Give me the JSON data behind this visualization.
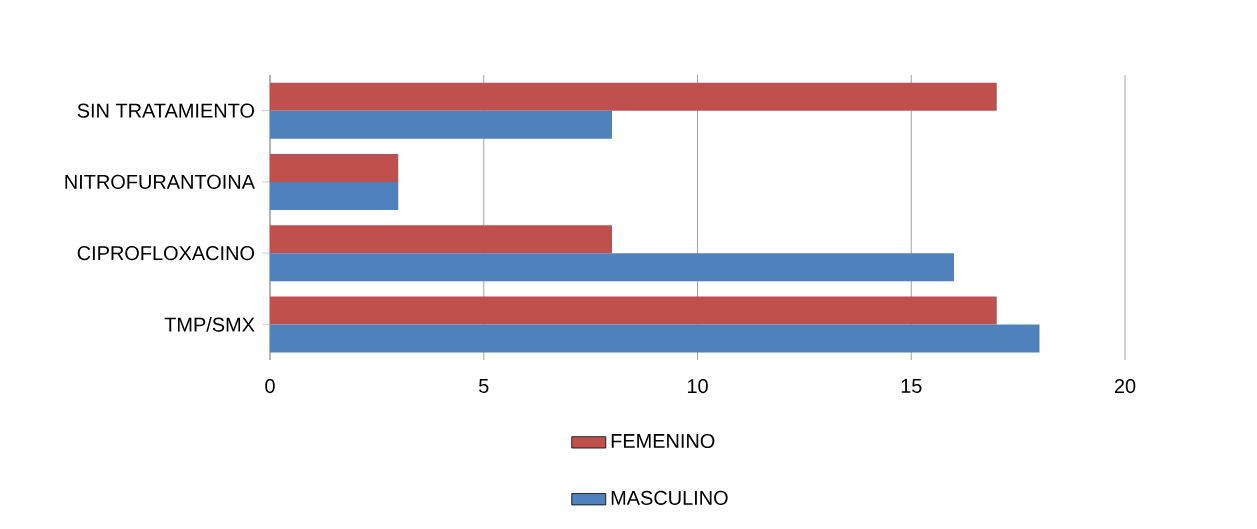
{
  "chart_data": {
    "type": "bar",
    "orientation": "horizontal",
    "categories": [
      "SIN TRATAMIENTO",
      "NITROFURANTOINA",
      "CIPROFLOXACINO",
      "TMP/SMX"
    ],
    "series": [
      {
        "name": "FEMENINO",
        "color": "#c0504d",
        "values": [
          17,
          3,
          8,
          17
        ]
      },
      {
        "name": "MASCULINO",
        "color": "#4f81bd",
        "values": [
          8,
          3,
          16,
          18
        ]
      }
    ],
    "xlim": [
      0,
      20
    ],
    "xticks": [
      0,
      5,
      10,
      15,
      20
    ],
    "grid": "x",
    "legend": "bottom"
  }
}
